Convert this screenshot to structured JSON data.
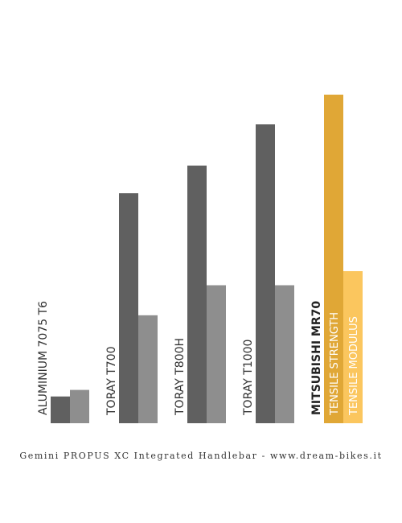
{
  "chart_data": {
    "type": "bar",
    "categories": [
      "ALUMINIUM 7075 T6",
      "TORAY T700",
      "TORAY T800H",
      "TORAY T1000",
      "MITSUBISHI MR70"
    ],
    "series": [
      {
        "name": "TENSILE STRENGTH",
        "values": [
          0.57,
          4.9,
          5.49,
          6.37,
          7.0
        ]
      },
      {
        "name": "TENSILE MODULUS",
        "values": [
          0.71,
          2.3,
          2.94,
          2.94,
          3.24
        ]
      }
    ],
    "ylim": [
      0,
      7.2
    ],
    "colors": {
      "strength": "#606060",
      "modulus": "#8e8e8e",
      "highlight_strength": "#e0a736",
      "highlight_modulus": "#fbc65e"
    },
    "highlight_category": "MITSUBISHI MR70",
    "grid": false
  },
  "footer": {
    "text": "Gemini PROPUS XC Integrated Handlebar -   www.dream-bikes.it"
  }
}
